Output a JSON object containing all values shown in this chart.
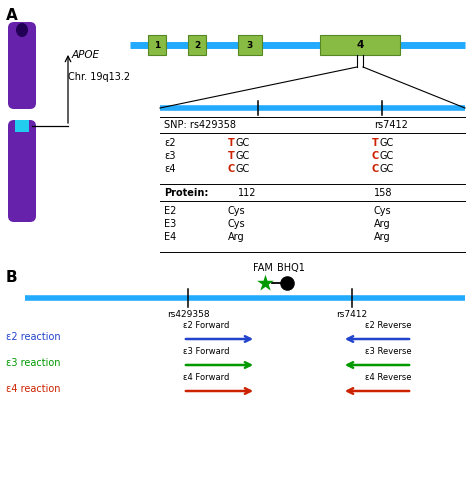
{
  "panel_A_label": "A",
  "panel_B_label": "B",
  "chrom_color": "#6622aa",
  "chrom_centromere_color": "#22ccee",
  "gene_line_color": "#22aaff",
  "exon_color": "#88bb44",
  "exon_border_color": "#558822",
  "exon_labels": [
    "1",
    "2",
    "3",
    "4"
  ],
  "apoe_label": "APOE",
  "chr_label": "Chr. 19q13.2",
  "snp_labels": [
    "rs429358",
    "rs7412"
  ],
  "allele_rows": [
    {
      "allele": "ε2",
      "col1_prefix": "T",
      "col1_suffix": "GC",
      "col2_prefix": "T",
      "col2_suffix": "GC"
    },
    {
      "allele": "ε3",
      "col1_prefix": "T",
      "col1_suffix": "GC",
      "col2_prefix": "C",
      "col2_suffix": "GC"
    },
    {
      "allele": "ε4",
      "col1_prefix": "C",
      "col1_suffix": "GC",
      "col2_prefix": "C",
      "col2_suffix": "GC"
    }
  ],
  "protein_label": "Protein:",
  "protein_pos1": "112",
  "protein_pos2": "158",
  "protein_rows": [
    {
      "name": "E2",
      "aa1": "Cys",
      "aa2": "Cys"
    },
    {
      "name": "E3",
      "aa1": "Cys",
      "aa2": "Arg"
    },
    {
      "name": "E4",
      "aa1": "Arg",
      "aa2": "Arg"
    }
  ],
  "fam_label": "FAM",
  "bhq1_label": "BHQ1",
  "probe_green_color": "#009900",
  "reaction_labels": [
    {
      "name": "ε2 reaction",
      "color": "#2244cc",
      "fwd_label": "ε2 Forward",
      "rev_label": "ε2 Reverse"
    },
    {
      "name": "ε3 reaction",
      "color": "#009900",
      "fwd_label": "ε3 Forward",
      "rev_label": "ε3 Reverse"
    },
    {
      "name": "ε4 reaction",
      "color": "#cc2200",
      "fwd_label": "ε4 Forward",
      "rev_label": "ε4 Reverse"
    }
  ],
  "snp_red_color": "#cc2200"
}
